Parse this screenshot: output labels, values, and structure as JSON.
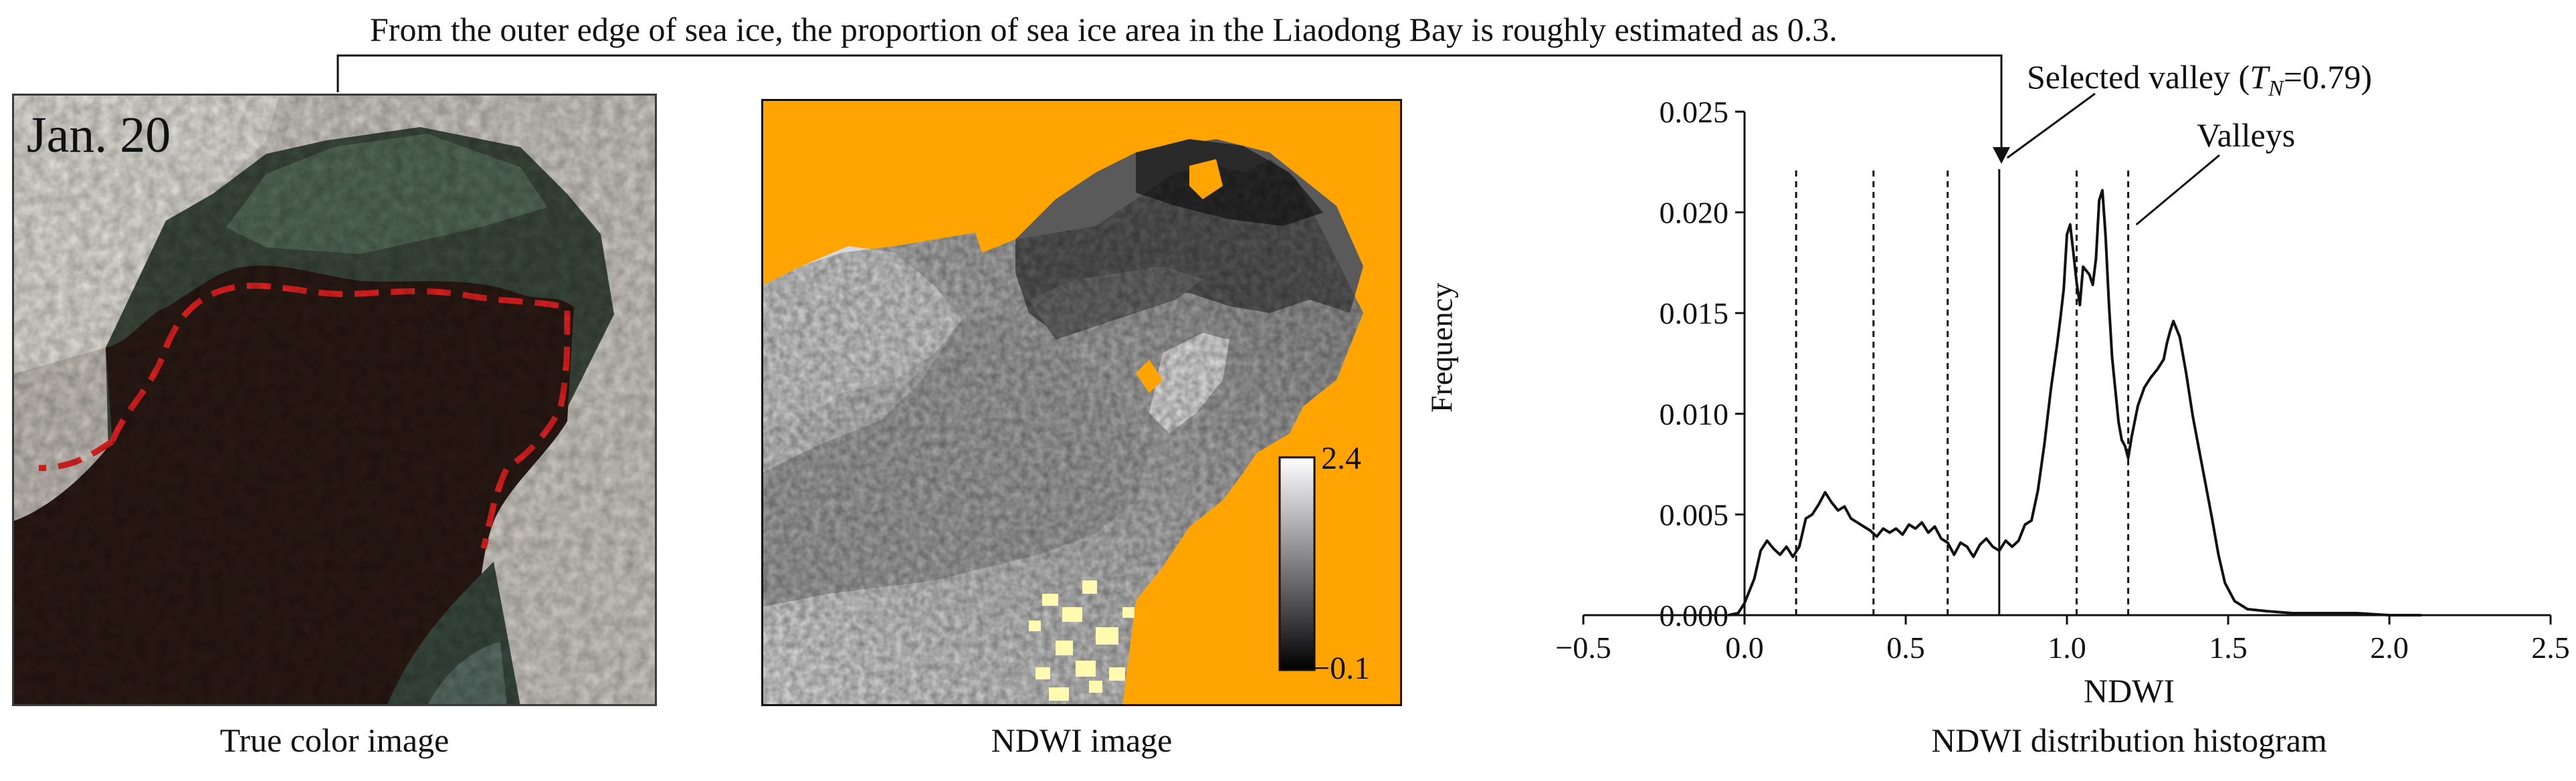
{
  "header_note": "From the outer edge of sea ice, the proportion of sea ice area in the Liaodong Bay is roughly estimated as 0.3.",
  "panels": {
    "true_color": {
      "date_label": "Jan. 20",
      "caption": "True color image",
      "colors": {
        "ice": "#d2cec6",
        "water": "#2b1a14",
        "ice_edge": "#ee2222"
      }
    },
    "ndwi": {
      "caption": "NDWI image",
      "colorbar_max": "2.4",
      "colorbar_min": "−0.1",
      "colors": {
        "land": "#ffa400",
        "scale_low": "#000000",
        "scale_high": "#ffffff"
      }
    },
    "histogram": {
      "caption": "NDWI distribution histogram",
      "selected_label_prefix": "Selected valley (",
      "selected_label_symbol": "T",
      "selected_label_subscript": "N",
      "selected_label_suffix": "=0.79)",
      "valleys_label": "Valleys"
    }
  },
  "chart_data": {
    "type": "line",
    "xlabel": "NDWI",
    "ylabel": "Frequency",
    "xlim": [
      -0.5,
      2.5
    ],
    "ylim": [
      0,
      0.025
    ],
    "xticks": [
      -0.5,
      0.0,
      0.5,
      1.0,
      1.5,
      2.0,
      2.5
    ],
    "xtick_labels": [
      "−0.5",
      "0.0",
      "0.5",
      "1.0",
      "1.5",
      "2.0",
      "2.5"
    ],
    "yticks": [
      0,
      0.005,
      0.01,
      0.015,
      0.02,
      0.025
    ],
    "ytick_labels": [
      "0.000",
      "0.005",
      "0.010",
      "0.015",
      "0.020",
      "0.025"
    ],
    "grid": false,
    "series": [
      {
        "x": [
          -0.05,
          -0.02,
          0.0,
          0.03,
          0.05,
          0.07,
          0.09,
          0.11,
          0.13,
          0.15,
          0.17,
          0.19,
          0.21,
          0.23,
          0.25,
          0.27,
          0.29,
          0.31,
          0.33,
          0.35,
          0.37,
          0.39,
          0.41,
          0.43,
          0.45,
          0.47,
          0.49,
          0.51,
          0.53,
          0.55,
          0.57,
          0.59,
          0.61,
          0.63,
          0.65,
          0.67,
          0.69,
          0.71,
          0.73,
          0.75,
          0.77,
          0.79,
          0.81,
          0.83,
          0.85,
          0.87,
          0.89,
          0.91,
          0.93,
          0.95,
          0.97,
          0.98,
          0.99,
          1.0,
          1.01,
          1.02,
          1.03,
          1.04,
          1.05,
          1.06,
          1.07,
          1.08,
          1.09,
          1.1,
          1.11,
          1.12,
          1.13,
          1.14,
          1.15,
          1.16,
          1.17,
          1.18,
          1.19,
          1.2,
          1.22,
          1.24,
          1.26,
          1.28,
          1.3,
          1.31,
          1.32,
          1.33,
          1.35,
          1.37,
          1.39,
          1.41,
          1.43,
          1.45,
          1.47,
          1.49,
          1.52,
          1.56,
          1.62,
          1.7,
          1.8,
          1.9,
          2.0,
          2.1
        ],
        "y": [
          0.0,
          0.0001,
          0.0006,
          0.0018,
          0.0032,
          0.0037,
          0.0033,
          0.003,
          0.0034,
          0.0029,
          0.0034,
          0.0048,
          0.005,
          0.0055,
          0.0061,
          0.0056,
          0.0052,
          0.0054,
          0.0048,
          0.0046,
          0.0044,
          0.0042,
          0.0039,
          0.0043,
          0.0041,
          0.0043,
          0.004,
          0.0045,
          0.0043,
          0.0046,
          0.0041,
          0.0044,
          0.0038,
          0.0036,
          0.003,
          0.0036,
          0.0034,
          0.0029,
          0.0035,
          0.0038,
          0.0034,
          0.0032,
          0.0037,
          0.0034,
          0.0037,
          0.0045,
          0.0047,
          0.0062,
          0.0085,
          0.0112,
          0.0135,
          0.0148,
          0.0162,
          0.0189,
          0.0194,
          0.018,
          0.0165,
          0.0154,
          0.0173,
          0.0171,
          0.0169,
          0.0164,
          0.0177,
          0.0206,
          0.0211,
          0.0188,
          0.0155,
          0.0128,
          0.0112,
          0.0096,
          0.0087,
          0.0084,
          0.0078,
          0.0088,
          0.0104,
          0.0113,
          0.0118,
          0.0122,
          0.0127,
          0.0135,
          0.0141,
          0.0146,
          0.0138,
          0.012,
          0.0099,
          0.0082,
          0.0065,
          0.0048,
          0.003,
          0.0016,
          0.0007,
          0.0003,
          0.0002,
          0.0001,
          0.0001,
          0.0001,
          0.0,
          0.0
        ]
      }
    ],
    "valleys": [
      0.16,
      0.4,
      0.63,
      1.03,
      1.19
    ],
    "selected_valley": 0.79
  }
}
